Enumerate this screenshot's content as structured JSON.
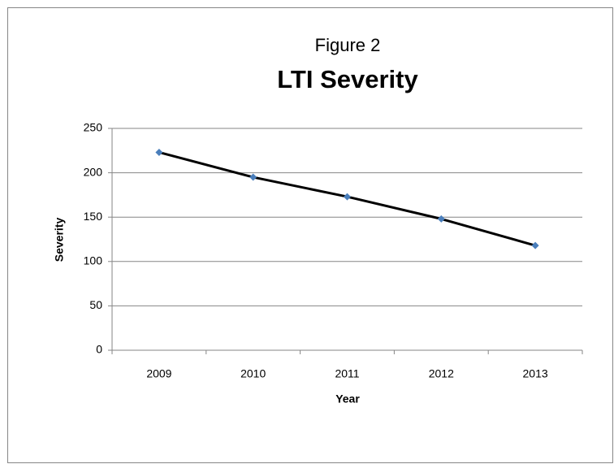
{
  "chart_data": {
    "type": "line",
    "figure_label": "Figure 2",
    "title": "LTI Severity",
    "x_label": "Year",
    "y_label": "Severity",
    "categories": [
      "2009",
      "2010",
      "2011",
      "2012",
      "2013"
    ],
    "series": [
      {
        "name": "Severity",
        "color": "#000000",
        "marker_color": "#4a7ebb",
        "values": [
          223,
          195,
          173,
          148,
          118
        ]
      }
    ],
    "ylim": [
      0,
      250
    ],
    "yticks": [
      0,
      50,
      100,
      150,
      200,
      250
    ],
    "grid": true,
    "legend": false
  }
}
